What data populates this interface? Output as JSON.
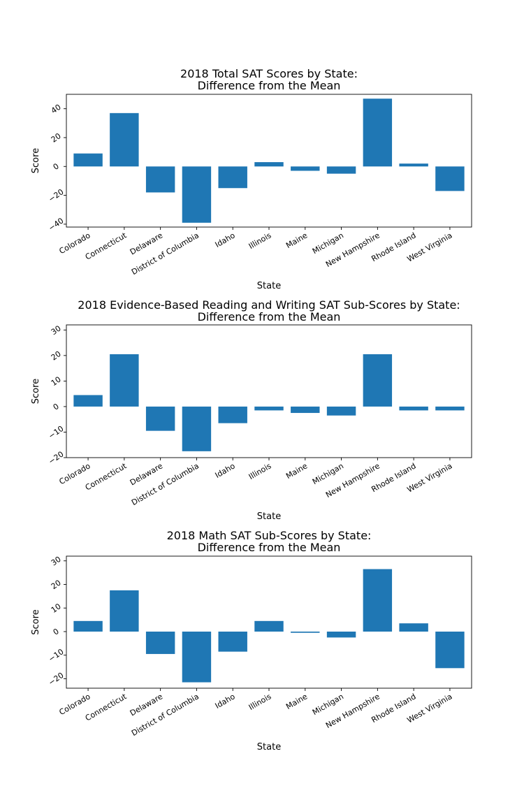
{
  "chart_data": [
    {
      "type": "bar",
      "title": "2018 Total SAT Scores by State:",
      "subtitle": "Difference from the Mean",
      "xlabel": "State",
      "ylabel": "Score",
      "ylim": [
        -42,
        50
      ],
      "yticks": [
        -40,
        -20,
        0,
        20,
        40
      ],
      "bar_color": "#1f77b4",
      "grid": false,
      "categories": [
        "Colorado",
        "Connecticut",
        "Delaware",
        "District of Columbia",
        "Idaho",
        "Illinois",
        "Maine",
        "Michigan",
        "New Hampshire",
        "Rhode Island",
        "West Virginia"
      ],
      "values": [
        9,
        37,
        -18,
        -39,
        -15,
        3,
        -3,
        -5,
        47,
        2,
        -17
      ]
    },
    {
      "type": "bar",
      "title": "2018 Evidence-Based Reading and Writing SAT Sub-Scores by State:",
      "subtitle": "Difference from the Mean",
      "xlabel": "State",
      "ylabel": "Score",
      "ylim": [
        -20,
        32
      ],
      "yticks": [
        -20,
        -10,
        0,
        10,
        20,
        30
      ],
      "bar_color": "#1f77b4",
      "grid": false,
      "categories": [
        "Colorado",
        "Connecticut",
        "Delaware",
        "District of Columbia",
        "Idaho",
        "Illinois",
        "Maine",
        "Michigan",
        "New Hampshire",
        "Rhode Island",
        "West Virginia"
      ],
      "values": [
        4.5,
        20.5,
        -9.5,
        -17.5,
        -6.5,
        -1.5,
        -2.5,
        -3.5,
        20.5,
        -1.5,
        -1.5
      ]
    },
    {
      "type": "bar",
      "title": "2018 Math SAT Sub-Scores by State:",
      "subtitle": "Difference from the Mean",
      "xlabel": "State",
      "ylabel": "Score",
      "ylim": [
        -24,
        32
      ],
      "yticks": [
        -20,
        -10,
        0,
        10,
        20,
        30
      ],
      "bar_color": "#1f77b4",
      "grid": false,
      "categories": [
        "Colorado",
        "Connecticut",
        "Delaware",
        "District of Columbia",
        "Idaho",
        "Illinois",
        "Maine",
        "Michigan",
        "New Hampshire",
        "Rhode Island",
        "West Virginia"
      ],
      "values": [
        4.5,
        17.5,
        -9.5,
        -21.5,
        -8.5,
        4.5,
        -0.5,
        -2.5,
        26.5,
        3.5,
        -15.5
      ]
    }
  ]
}
